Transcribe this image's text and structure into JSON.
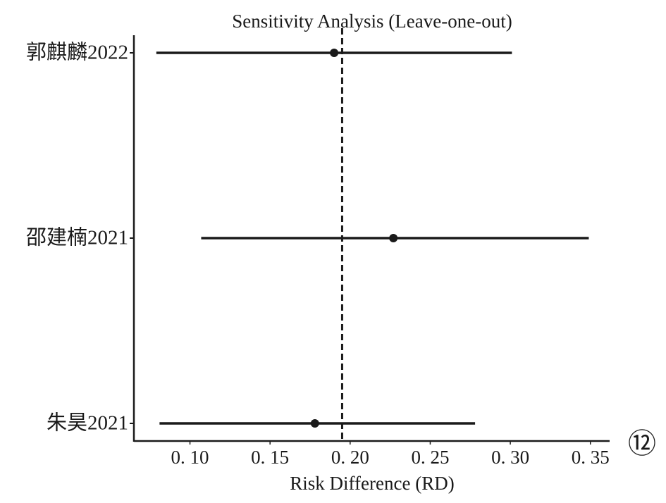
{
  "chart_data": {
    "type": "forest",
    "title": "Sensitivity Analysis (Leave-one-out)",
    "xlabel": "Risk Difference (RD)",
    "categories": [
      "郭麒麟2022",
      "邵建楠2021",
      "朱昊2021"
    ],
    "values": [
      0.19,
      0.227,
      0.178
    ],
    "lower": [
      0.079,
      0.107,
      0.081
    ],
    "upper": [
      0.301,
      0.349,
      0.278
    ],
    "reference_line": 0.195,
    "color": "#1a1a1a",
    "xlim": [
      0.065,
      0.362
    ],
    "xticks": [
      {
        "value": 0.1,
        "label": "0. 10"
      },
      {
        "value": 0.15,
        "label": "0. 15"
      },
      {
        "value": 0.2,
        "label": "0. 20"
      },
      {
        "value": 0.25,
        "label": "0. 25"
      },
      {
        "value": 0.3,
        "label": "0. 30"
      },
      {
        "value": 0.35,
        "label": "0. 35"
      }
    ],
    "annotation": "⑫"
  }
}
